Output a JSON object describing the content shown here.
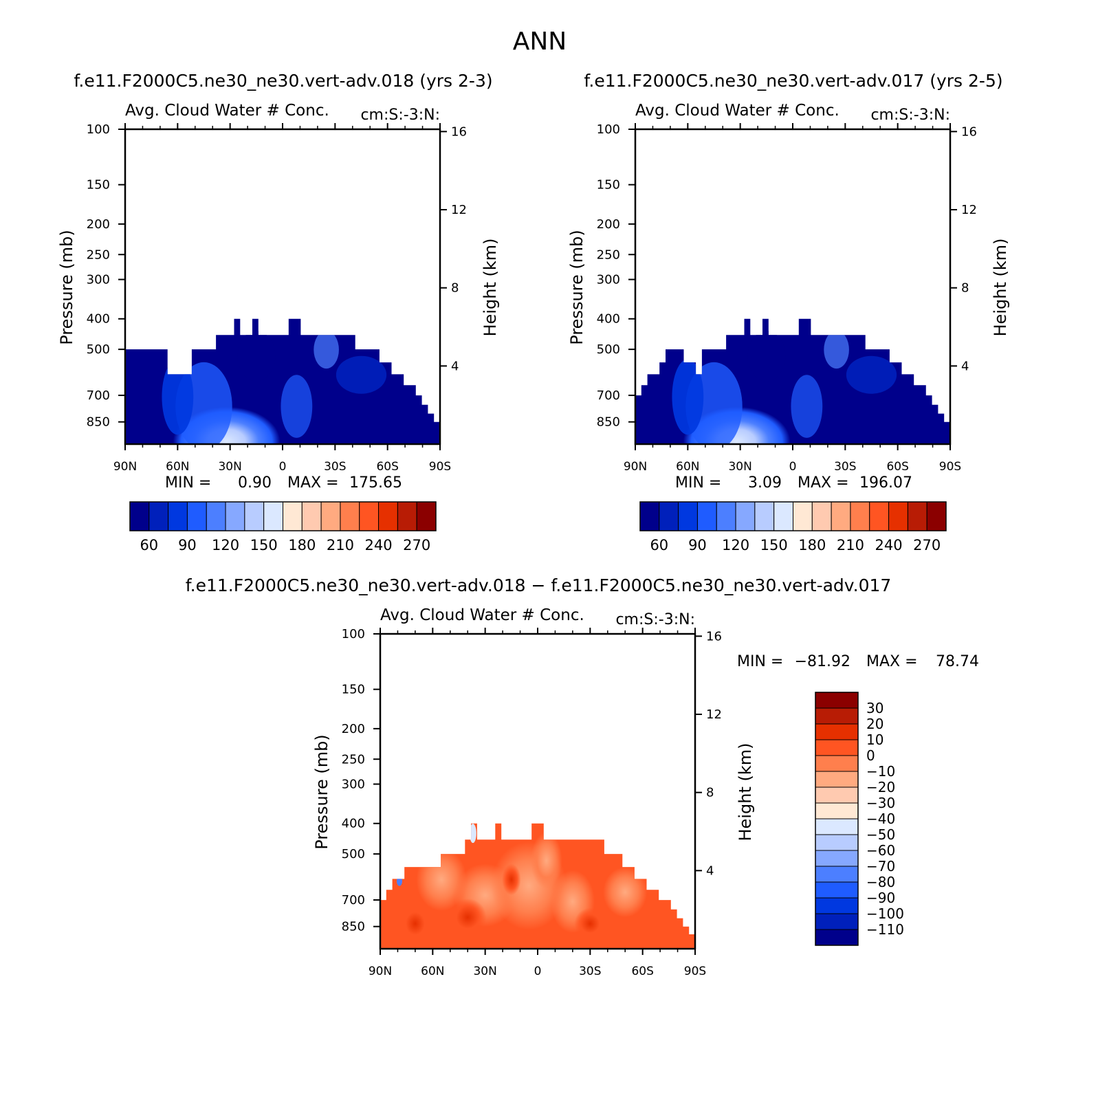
{
  "page_title": "ANN",
  "chart_data": [
    {
      "type": "heatmap",
      "case_title": "f.e11.F2000C5.ne30_ne30.vert-adv.018 (yrs 2-3)",
      "field_label": "Avg. Cloud Water # Conc.",
      "units_label": "cm:S:-3:N:",
      "ylabel": "Pressure (mb)",
      "ylabel_right": "Height (km)",
      "x_ticks": [
        "90N",
        "60N",
        "30N",
        "0",
        "30S",
        "60S",
        "90S"
      ],
      "y_ticks": [
        "100",
        "150",
        "200",
        "250",
        "300",
        "400",
        "500",
        "700",
        "850"
      ],
      "y_ticks_right": [
        "16",
        "12",
        "8",
        "4"
      ],
      "stats": {
        "min_label": "MIN =",
        "min": "0.90",
        "max_label": "MAX =",
        "max": "175.65"
      },
      "colorbar": {
        "orientation": "horizontal",
        "colors": [
          "#00008b",
          "#0020bb",
          "#0038e0",
          "#1f5cff",
          "#4c7fff",
          "#86a8ff",
          "#b8ccff",
          "#dbe8ff",
          "#ffe8d4",
          "#ffcab0",
          "#ffaa80",
          "#ff7f4d",
          "#ff5522",
          "#e63000",
          "#b81c05",
          "#8b0000"
        ],
        "labels": [
          "60",
          "90",
          "120",
          "150",
          "180",
          "210",
          "240",
          "270"
        ]
      },
      "top_pressure": [
        500,
        500,
        500,
        500,
        500,
        500,
        500,
        600,
        600,
        600,
        600,
        500,
        500,
        500,
        500,
        450,
        450,
        450,
        400,
        450,
        450,
        400,
        450,
        450,
        450,
        450,
        450,
        400,
        400,
        450,
        450,
        450,
        450,
        450,
        450,
        450,
        450,
        450,
        500,
        500,
        500,
        500,
        550,
        550,
        600,
        600,
        650,
        650,
        700,
        750,
        800,
        850
      ]
    },
    {
      "type": "heatmap",
      "case_title": "f.e11.F2000C5.ne30_ne30.vert-adv.017 (yrs 2-5)",
      "field_label": "Avg. Cloud Water # Conc.",
      "units_label": "cm:S:-3:N:",
      "ylabel": "Pressure (mb)",
      "ylabel_right": "Height (km)",
      "x_ticks": [
        "90N",
        "60N",
        "30N",
        "0",
        "30S",
        "60S",
        "90S"
      ],
      "y_ticks": [
        "100",
        "150",
        "200",
        "250",
        "300",
        "400",
        "500",
        "700",
        "850"
      ],
      "y_ticks_right": [
        "16",
        "12",
        "8",
        "4"
      ],
      "stats": {
        "min_label": "MIN =",
        "min": "3.09",
        "max_label": "MAX =",
        "max": "196.07"
      },
      "colorbar": {
        "orientation": "horizontal",
        "colors": [
          "#00008b",
          "#0020bb",
          "#0038e0",
          "#1f5cff",
          "#4c7fff",
          "#86a8ff",
          "#b8ccff",
          "#dbe8ff",
          "#ffe8d4",
          "#ffcab0",
          "#ffaa80",
          "#ff7f4d",
          "#ff5522",
          "#e63000",
          "#b81c05",
          "#8b0000"
        ],
        "labels": [
          "60",
          "90",
          "120",
          "150",
          "180",
          "210",
          "240",
          "270"
        ]
      },
      "top_pressure": [
        700,
        650,
        600,
        600,
        550,
        500,
        500,
        500,
        550,
        550,
        600,
        500,
        500,
        500,
        500,
        450,
        450,
        450,
        400,
        450,
        450,
        400,
        450,
        450,
        450,
        450,
        450,
        400,
        400,
        450,
        450,
        450,
        450,
        450,
        450,
        450,
        450,
        450,
        500,
        500,
        500,
        500,
        550,
        550,
        600,
        600,
        650,
        650,
        700,
        750,
        800,
        850
      ]
    },
    {
      "type": "heatmap",
      "case_title": "f.e11.F2000C5.ne30_ne30.vert-adv.018 − f.e11.F2000C5.ne30_ne30.vert-adv.017",
      "field_label": "Avg. Cloud Water # Conc.",
      "units_label": "cm:S:-3:N:",
      "ylabel": "Pressure (mb)",
      "ylabel_right": "Height (km)",
      "x_ticks": [
        "90N",
        "60N",
        "30N",
        "0",
        "30S",
        "60S",
        "90S"
      ],
      "y_ticks": [
        "100",
        "150",
        "200",
        "250",
        "300",
        "400",
        "500",
        "700",
        "850"
      ],
      "y_ticks_right": [
        "16",
        "12",
        "8",
        "4"
      ],
      "stats": {
        "min_label": "MIN =",
        "min": "−81.92",
        "max_label": "MAX =",
        "max": "78.74"
      },
      "colorbar": {
        "orientation": "vertical",
        "colors": [
          "#00008b",
          "#0020bb",
          "#0038e0",
          "#1f5cff",
          "#4c7fff",
          "#86a8ff",
          "#b8ccff",
          "#dbe8ff",
          "#ffe8d4",
          "#ffcab0",
          "#ffaa80",
          "#ff7f4d",
          "#ff5522",
          "#e63000",
          "#b81c05",
          "#8b0000"
        ],
        "labels": [
          "−110",
          "−100",
          "−90",
          "−80",
          "−70",
          "−60",
          "−50",
          "−40",
          "−30",
          "−20",
          "−10",
          "0",
          "10",
          "20",
          "30"
        ]
      },
      "top_pressure": [
        700,
        650,
        600,
        600,
        550,
        550,
        550,
        550,
        550,
        550,
        500,
        500,
        500,
        500,
        450,
        400,
        450,
        450,
        450,
        400,
        450,
        450,
        450,
        450,
        450,
        400,
        400,
        450,
        450,
        450,
        450,
        450,
        450,
        450,
        450,
        450,
        450,
        500,
        500,
        500,
        550,
        550,
        600,
        600,
        650,
        650,
        700,
        700,
        750,
        800,
        850,
        900
      ]
    }
  ]
}
